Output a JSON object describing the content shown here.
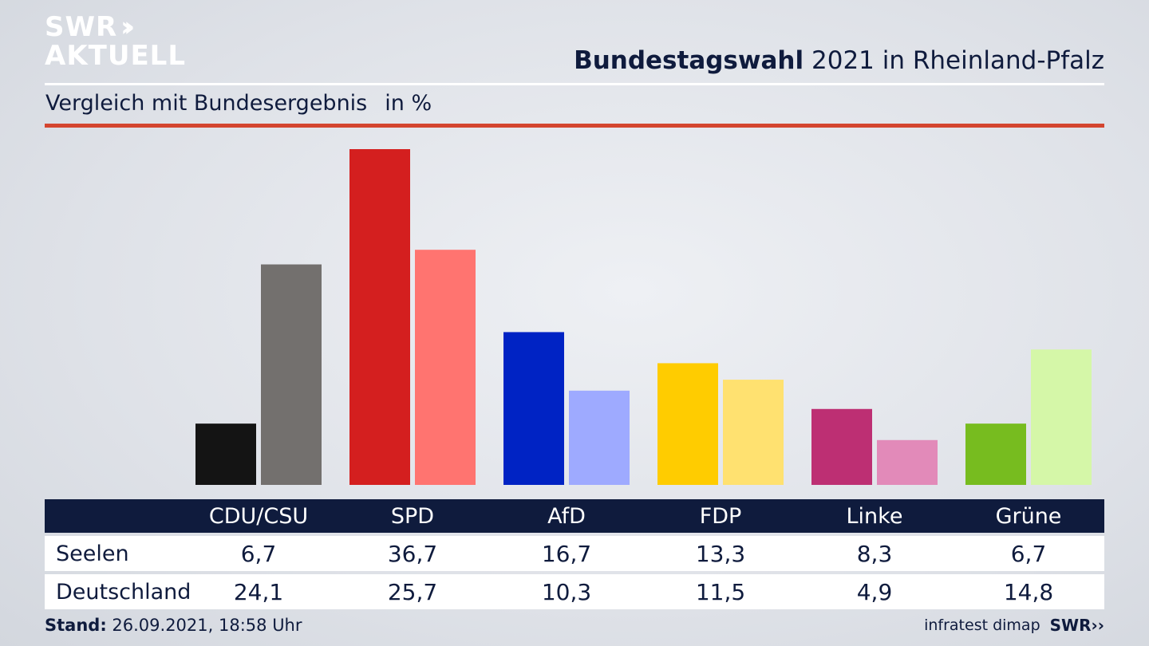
{
  "header": {
    "logo_line1": "SWR",
    "logo_line2": "AKTUELL",
    "title_bold": "Bundestagswahl",
    "title_rest": "2021 in Rheinland-Pfalz",
    "subtitle": "Vergleich mit Bundesergebnis",
    "unit": "in %"
  },
  "footer": {
    "stand_label": "Stand:",
    "stand_value": "26.09.2021, 18:58 Uhr",
    "source": "infratest dimap",
    "brand": "SWR"
  },
  "colors": {
    "title_navy": "#0f1b3d",
    "accent_red_rule": "#d4452f"
  },
  "chart_data": {
    "type": "bar",
    "categories": [
      "CDU/CSU",
      "SPD",
      "AfD",
      "FDP",
      "Linke",
      "Grüne"
    ],
    "series": [
      {
        "name": "Seelen",
        "values": [
          6.7,
          36.7,
          16.7,
          13.3,
          8.3,
          6.7
        ],
        "labels": [
          "6,7",
          "36,7",
          "16,7",
          "13,3",
          "8,3",
          "6,7"
        ],
        "colors": [
          "#141414",
          "#d41f1f",
          "#0023c4",
          "#ffcc00",
          "#bd2f73",
          "#77bc1f"
        ]
      },
      {
        "name": "Deutschland",
        "values": [
          24.1,
          25.7,
          10.3,
          11.5,
          4.9,
          14.8
        ],
        "labels": [
          "24,1",
          "25,7",
          "10,3",
          "11,5",
          "4,9",
          "14,8"
        ],
        "colors": [
          "#73706e",
          "#ff7470",
          "#9eaaff",
          "#ffe170",
          "#e28ab9",
          "#d5f7a8"
        ]
      }
    ],
    "ylim": [
      0,
      40
    ],
    "grid": false,
    "legend": "table-below"
  }
}
